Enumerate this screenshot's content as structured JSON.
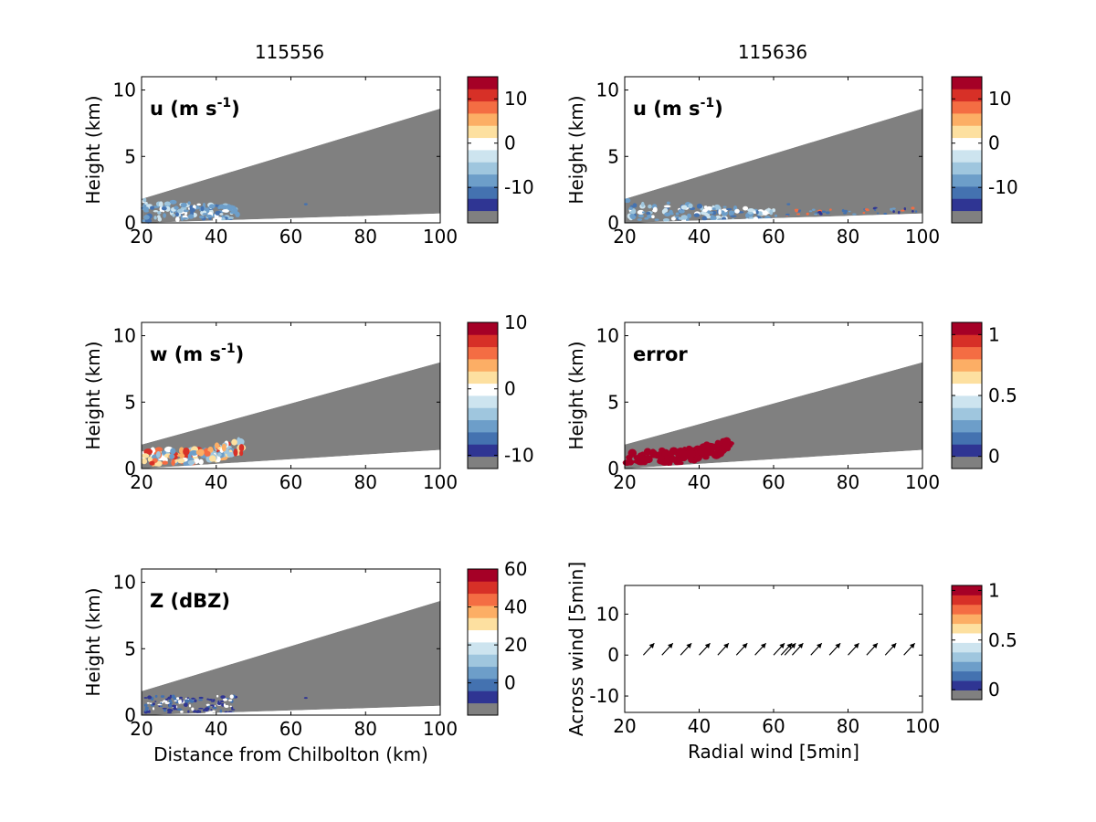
{
  "column_titles": [
    "115556",
    "115636"
  ],
  "colors": {
    "gray": "#808080",
    "palette": [
      "#2f3593",
      "#4472b0",
      "#6d9ec9",
      "#9fc6de",
      "#cde4ef",
      "#ffffff",
      "#fde0a0",
      "#fcae65",
      "#f46d43",
      "#d73027",
      "#a50026"
    ]
  },
  "chart_data": [
    {
      "type": "heatmap",
      "id": "u-115556",
      "label_parts": {
        "main": "u (m s",
        "sup": "-1",
        "close": ")"
      },
      "xlabel": "",
      "ylabel": "Height (km)",
      "xlim": [
        20,
        100
      ],
      "ylim": [
        0,
        11
      ],
      "xticks": [
        20,
        40,
        60,
        80,
        100
      ],
      "yticks": [
        0,
        5,
        10
      ],
      "wedge": {
        "top_start": 1.8,
        "top_end": 8.6,
        "bottom_start": 0,
        "bottom_end": 0.7
      },
      "colorbar": {
        "ticks": [
          "10",
          "0",
          "-10"
        ],
        "tick_values": [
          10,
          0,
          -10
        ],
        "range": [
          -18,
          15
        ]
      }
    },
    {
      "type": "heatmap",
      "id": "u-115636",
      "label_parts": {
        "main": "u (m s",
        "sup": "-1",
        "close": ")"
      },
      "xlabel": "",
      "ylabel": "Height (km)",
      "xlim": [
        20,
        100
      ],
      "ylim": [
        0,
        11
      ],
      "xticks": [
        20,
        40,
        60,
        80,
        100
      ],
      "yticks": [
        0,
        5,
        10
      ],
      "wedge": {
        "top_start": 1.8,
        "top_end": 8.6,
        "bottom_start": 0,
        "bottom_end": 0.7
      },
      "colorbar": {
        "ticks": [
          "10",
          "0",
          "-10"
        ],
        "tick_values": [
          10,
          0,
          -10
        ],
        "range": [
          -18,
          15
        ]
      }
    },
    {
      "type": "heatmap",
      "id": "w-115556",
      "label_parts": {
        "main": "w (m s",
        "sup": "-1",
        "close": ")"
      },
      "xlabel": "",
      "ylabel": "Height (km)",
      "xlim": [
        20,
        100
      ],
      "ylim": [
        0,
        11
      ],
      "xticks": [
        20,
        40,
        60,
        80,
        100
      ],
      "yticks": [
        0,
        5,
        10
      ],
      "wedge": {
        "top_start": 1.8,
        "top_end": 8.0,
        "bottom_start": 0,
        "bottom_end": 1.4
      },
      "colorbar": {
        "ticks": [
          "10",
          "0",
          "-10"
        ],
        "tick_values": [
          10,
          0,
          -10
        ],
        "range": [
          -12,
          10
        ]
      }
    },
    {
      "type": "heatmap",
      "id": "error-115636",
      "label_parts": {
        "main": "error",
        "sup": "",
        "close": ""
      },
      "xlabel": "",
      "ylabel": "Height (km)",
      "xlim": [
        20,
        100
      ],
      "ylim": [
        0,
        11
      ],
      "xticks": [
        20,
        40,
        60,
        80,
        100
      ],
      "yticks": [
        0,
        5,
        10
      ],
      "wedge": {
        "top_start": 1.8,
        "top_end": 8.0,
        "bottom_start": 0,
        "bottom_end": 1.4
      },
      "colorbar": {
        "ticks": [
          "1",
          "0.5",
          "0"
        ],
        "tick_values": [
          1,
          0.5,
          0
        ],
        "range": [
          -0.1,
          1.1
        ]
      }
    },
    {
      "type": "heatmap",
      "id": "Z-115556",
      "label_parts": {
        "main": "Z (dBZ)",
        "sup": "",
        "close": ""
      },
      "xlabel": "Distance from Chilbolton (km)",
      "ylabel": "Height (km)",
      "xlim": [
        20,
        100
      ],
      "ylim": [
        0,
        11
      ],
      "xticks": [
        20,
        40,
        60,
        80,
        100
      ],
      "yticks": [
        0,
        5,
        10
      ],
      "wedge": {
        "top_start": 1.8,
        "top_end": 8.6,
        "bottom_start": 0,
        "bottom_end": 0.7
      },
      "colorbar": {
        "ticks": [
          "60",
          "40",
          "20",
          "0"
        ],
        "tick_values": [
          60,
          40,
          20,
          0
        ],
        "range": [
          -17,
          60
        ]
      }
    },
    {
      "type": "scatter",
      "id": "wind-vectors",
      "xlabel": "Radial wind [5min]",
      "ylabel": "Across wind [5min]",
      "xlim": [
        20,
        100
      ],
      "ylim": [
        -14,
        17
      ],
      "xticks": [
        20,
        40,
        60,
        80,
        100
      ],
      "yticks": [
        -10,
        0,
        10
      ],
      "x": [
        25,
        30,
        35,
        40,
        45,
        50,
        55,
        60,
        62,
        63,
        65,
        70,
        75,
        80,
        85,
        90,
        95
      ],
      "y": [
        0,
        0,
        0,
        0,
        0,
        0,
        0,
        0,
        0,
        0,
        0,
        0,
        0,
        0,
        0,
        0,
        0
      ],
      "colorbar": {
        "ticks": [
          "1",
          "0.5",
          "0"
        ],
        "tick_values": [
          1,
          0.5,
          0
        ],
        "range": [
          -0.1,
          1.05
        ]
      }
    }
  ]
}
